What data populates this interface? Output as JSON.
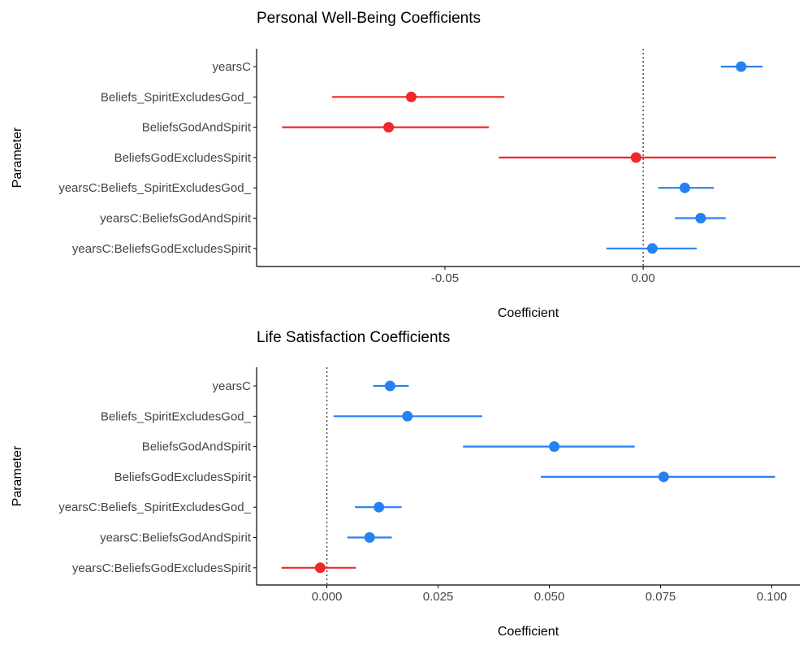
{
  "colors": {
    "positive": "#2681f2",
    "negative": "#f0282a",
    "axis": "#000000",
    "text": "#444444"
  },
  "chart_data": [
    {
      "type": "forest",
      "title": "Personal Well-Being Coefficients",
      "xlabel": "Coefficient",
      "ylabel": "Parameter",
      "xlim": [
        -0.0975,
        0.0395
      ],
      "xticks": [
        -0.05,
        0.0
      ],
      "xtick_labels": [
        "-0.05",
        "0.00"
      ],
      "reference_line": 0,
      "parameters": [
        "yearsC",
        "Beliefs_SpiritExcludesGod_",
        "BeliefsGodAndSpirit",
        "BeliefsGodExcludesSpirit",
        "yearsC:Beliefs_SpiritExcludesGod_",
        "yearsC:BeliefsGodAndSpirit",
        "yearsC:BeliefsGodExcludesSpirit"
      ],
      "estimates": [
        0.0247,
        -0.0585,
        -0.0642,
        -0.0018,
        0.0105,
        0.0145,
        0.0023
      ],
      "lower": [
        0.0196,
        -0.0785,
        -0.0911,
        -0.0364,
        0.0038,
        0.008,
        -0.0093
      ],
      "upper": [
        0.0301,
        -0.035,
        -0.0389,
        0.0335,
        0.0178,
        0.0208,
        0.0135
      ]
    },
    {
      "type": "forest",
      "title": "Life Satisfaction Coefficients",
      "xlabel": "Coefficient",
      "ylabel": "Parameter",
      "xlim": [
        -0.0158,
        0.1063
      ],
      "xticks": [
        0.0,
        0.025,
        0.05,
        0.075,
        0.1
      ],
      "xtick_labels": [
        "0.000",
        "0.025",
        "0.050",
        "0.075",
        "0.100"
      ],
      "reference_line": 0,
      "parameters": [
        "yearsC",
        "Beliefs_SpiritExcludesGod_",
        "BeliefsGodAndSpirit",
        "BeliefsGodExcludesSpirit",
        "yearsC:Beliefs_SpiritExcludesGod_",
        "yearsC:BeliefsGodAndSpirit",
        "yearsC:BeliefsGodExcludesSpirit"
      ],
      "estimates": [
        0.0142,
        0.0181,
        0.0511,
        0.0757,
        0.0117,
        0.0096,
        -0.0015
      ],
      "lower": [
        0.0104,
        0.0015,
        0.0306,
        0.0481,
        0.0063,
        0.0046,
        -0.0102
      ],
      "upper": [
        0.0184,
        0.0349,
        0.0692,
        0.1007,
        0.0168,
        0.0146,
        0.0065
      ]
    }
  ]
}
